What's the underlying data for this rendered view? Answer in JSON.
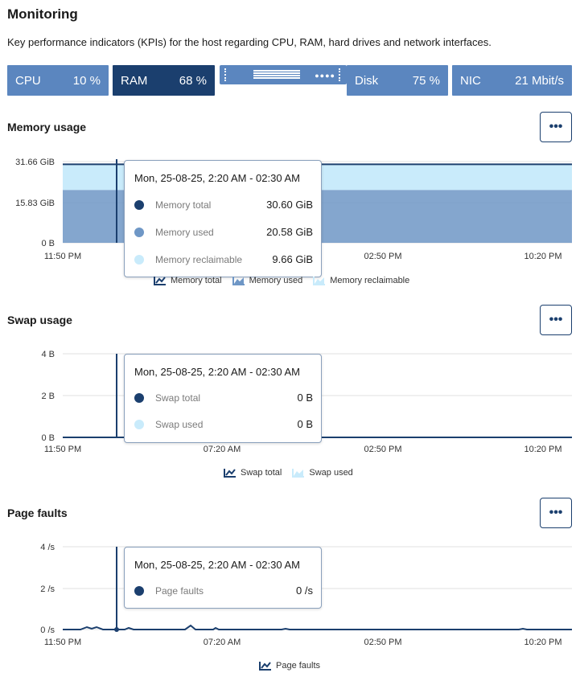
{
  "header": {
    "title": "Monitoring",
    "description": "Key performance indicators (KPIs) for the host regarding CPU, RAM, hard drives and network interfaces."
  },
  "kpis": [
    {
      "label": "CPU",
      "value": "10 %",
      "active": false
    },
    {
      "label": "RAM",
      "value": "68 %",
      "active": true
    },
    {
      "label": "Disk",
      "value": "75 %",
      "active": false
    },
    {
      "label": "NIC",
      "value": "21 Mbit/s",
      "active": false
    }
  ],
  "more_button_label": "•••",
  "colors": {
    "dark": "#1b3f6e",
    "mid": "#6f97c6",
    "light": "#c9ebfb",
    "kpi": "#5b86bf"
  },
  "memory": {
    "title": "Memory usage",
    "y_ticks": [
      "31.66 GiB",
      "15.83 GiB",
      "0 B"
    ],
    "x_ticks": [
      "11:50 PM",
      "02:50 PM",
      "10:20 PM"
    ],
    "tooltip": {
      "title": "Mon, 25-08-25, 2:20 AM - 02:30 AM",
      "rows": [
        {
          "name": "Memory total",
          "value": "30.60 GiB"
        },
        {
          "name": "Memory used",
          "value": "20.58 GiB"
        },
        {
          "name": "Memory reclaimable",
          "value": "9.66 GiB"
        }
      ]
    },
    "legend": [
      "Memory total",
      "Memory used",
      "Memory reclaimable"
    ]
  },
  "swap": {
    "title": "Swap usage",
    "y_ticks": [
      "4 B",
      "2 B",
      "0 B"
    ],
    "x_ticks": [
      "11:50 PM",
      "07:20 AM",
      "02:50 PM",
      "10:20 PM"
    ],
    "tooltip": {
      "title": "Mon, 25-08-25, 2:20 AM - 02:30 AM",
      "rows": [
        {
          "name": "Swap total",
          "value": "0 B"
        },
        {
          "name": "Swap used",
          "value": "0 B"
        }
      ]
    },
    "legend": [
      "Swap total",
      "Swap used"
    ]
  },
  "pagefaults": {
    "title": "Page faults",
    "y_ticks": [
      "4 /s",
      "2 /s",
      "0 /s"
    ],
    "x_ticks": [
      "11:50 PM",
      "07:20 AM",
      "02:50 PM",
      "10:20 PM"
    ],
    "tooltip": {
      "title": "Mon, 25-08-25, 2:20 AM - 02:30 AM",
      "rows": [
        {
          "name": "Page faults",
          "value": "0 /s"
        }
      ]
    },
    "legend": [
      "Page faults"
    ]
  },
  "chart_data": [
    {
      "type": "area",
      "title": "Memory usage",
      "x": [
        "11:50 PM",
        "02:50 PM",
        "10:20 PM"
      ],
      "ylim": [
        0,
        31.66
      ],
      "series": [
        {
          "name": "Memory total",
          "values": [
            30.6,
            30.6,
            30.6
          ]
        },
        {
          "name": "Memory used",
          "values": [
            20.58,
            20.58,
            20.58
          ]
        },
        {
          "name": "Memory reclaimable",
          "values": [
            9.66,
            9.66,
            9.66
          ]
        }
      ]
    },
    {
      "type": "line",
      "title": "Swap usage",
      "x": [
        "11:50 PM",
        "07:20 AM",
        "02:50 PM",
        "10:20 PM"
      ],
      "ylim": [
        0,
        4
      ],
      "series": [
        {
          "name": "Swap total",
          "values": [
            0,
            0,
            0,
            0
          ]
        },
        {
          "name": "Swap used",
          "values": [
            0,
            0,
            0,
            0
          ]
        }
      ]
    },
    {
      "type": "line",
      "title": "Page faults",
      "x": [
        "11:50 PM",
        "07:20 AM",
        "02:50 PM",
        "10:20 PM"
      ],
      "ylim": [
        0,
        4
      ],
      "series": [
        {
          "name": "Page faults",
          "values": [
            0,
            0,
            0,
            0
          ]
        }
      ]
    }
  ]
}
